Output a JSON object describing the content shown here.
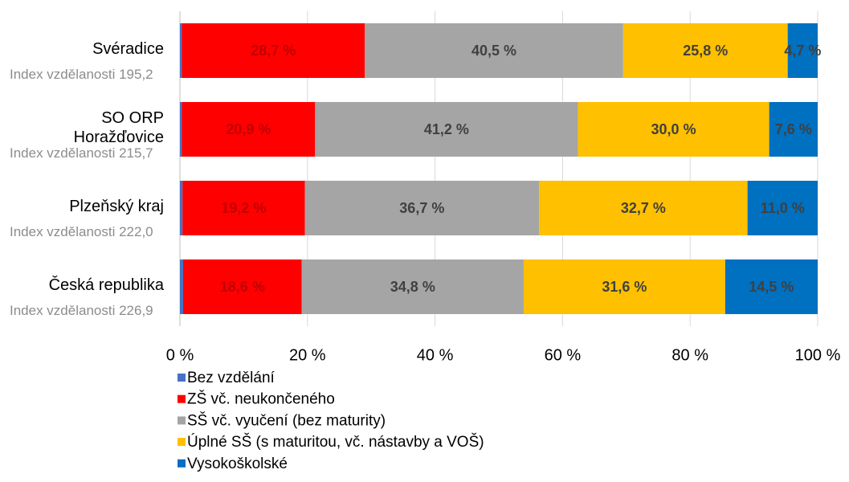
{
  "chart_data": {
    "type": "stacked_barh",
    "categories": [
      "Svéradice",
      "SO ORP Horažďovice",
      "Plzeňský kraj",
      "Česká republika"
    ],
    "annotations": [
      "Index vzdělanosti 195,2",
      "Index vzdělanosti 215,7",
      "Index vzdělanosti 222,0",
      "Index vzdělanosti 226,9"
    ],
    "series": [
      {
        "name": "Bez vzdělání",
        "color": "#4472c4",
        "values": [
          0.3,
          0.3,
          0.4,
          0.5
        ]
      },
      {
        "name": "ZŠ vč. neukončeného",
        "color": "#ff0000",
        "label_color": "#c00000",
        "values": [
          28.7,
          20.9,
          19.2,
          18.6
        ],
        "value_labels": [
          "28,7 %",
          "20,9 %",
          "19,2 %",
          "18,6 %"
        ]
      },
      {
        "name": "SŠ vč. vyučení (bez maturity)",
        "color": "#a5a5a5",
        "label_color": "#404040",
        "values": [
          40.5,
          41.2,
          36.7,
          34.8
        ],
        "value_labels": [
          "40,5 %",
          "41,2 %",
          "36,7 %",
          "34,8 %"
        ]
      },
      {
        "name": "Úplné SŠ (s maturitou, vč. nástavby a VOŠ)",
        "color": "#ffc000",
        "label_color": "#404040",
        "values": [
          25.8,
          30.0,
          32.7,
          31.6
        ],
        "value_labels": [
          "25,8 %",
          "30,0 %",
          "32,7 %",
          "31,6 %"
        ]
      },
      {
        "name": "Vysokoškolské",
        "color": "#0070c0",
        "label_color": "#404040",
        "values": [
          4.7,
          7.6,
          11.0,
          14.5
        ],
        "value_labels": [
          "4,7 %",
          "7,6 %",
          "11,0 %",
          "14,5 %"
        ]
      }
    ],
    "xlim": [
      0,
      100
    ],
    "xticks": [
      {
        "value": 0,
        "label": "0 %"
      },
      {
        "value": 20,
        "label": "20 %"
      },
      {
        "value": 40,
        "label": "40 %"
      },
      {
        "value": 60,
        "label": "60 %"
      },
      {
        "value": 80,
        "label": "80 %"
      },
      {
        "value": 100,
        "label": "100 %"
      }
    ],
    "grid": true,
    "legend": "bottom"
  }
}
